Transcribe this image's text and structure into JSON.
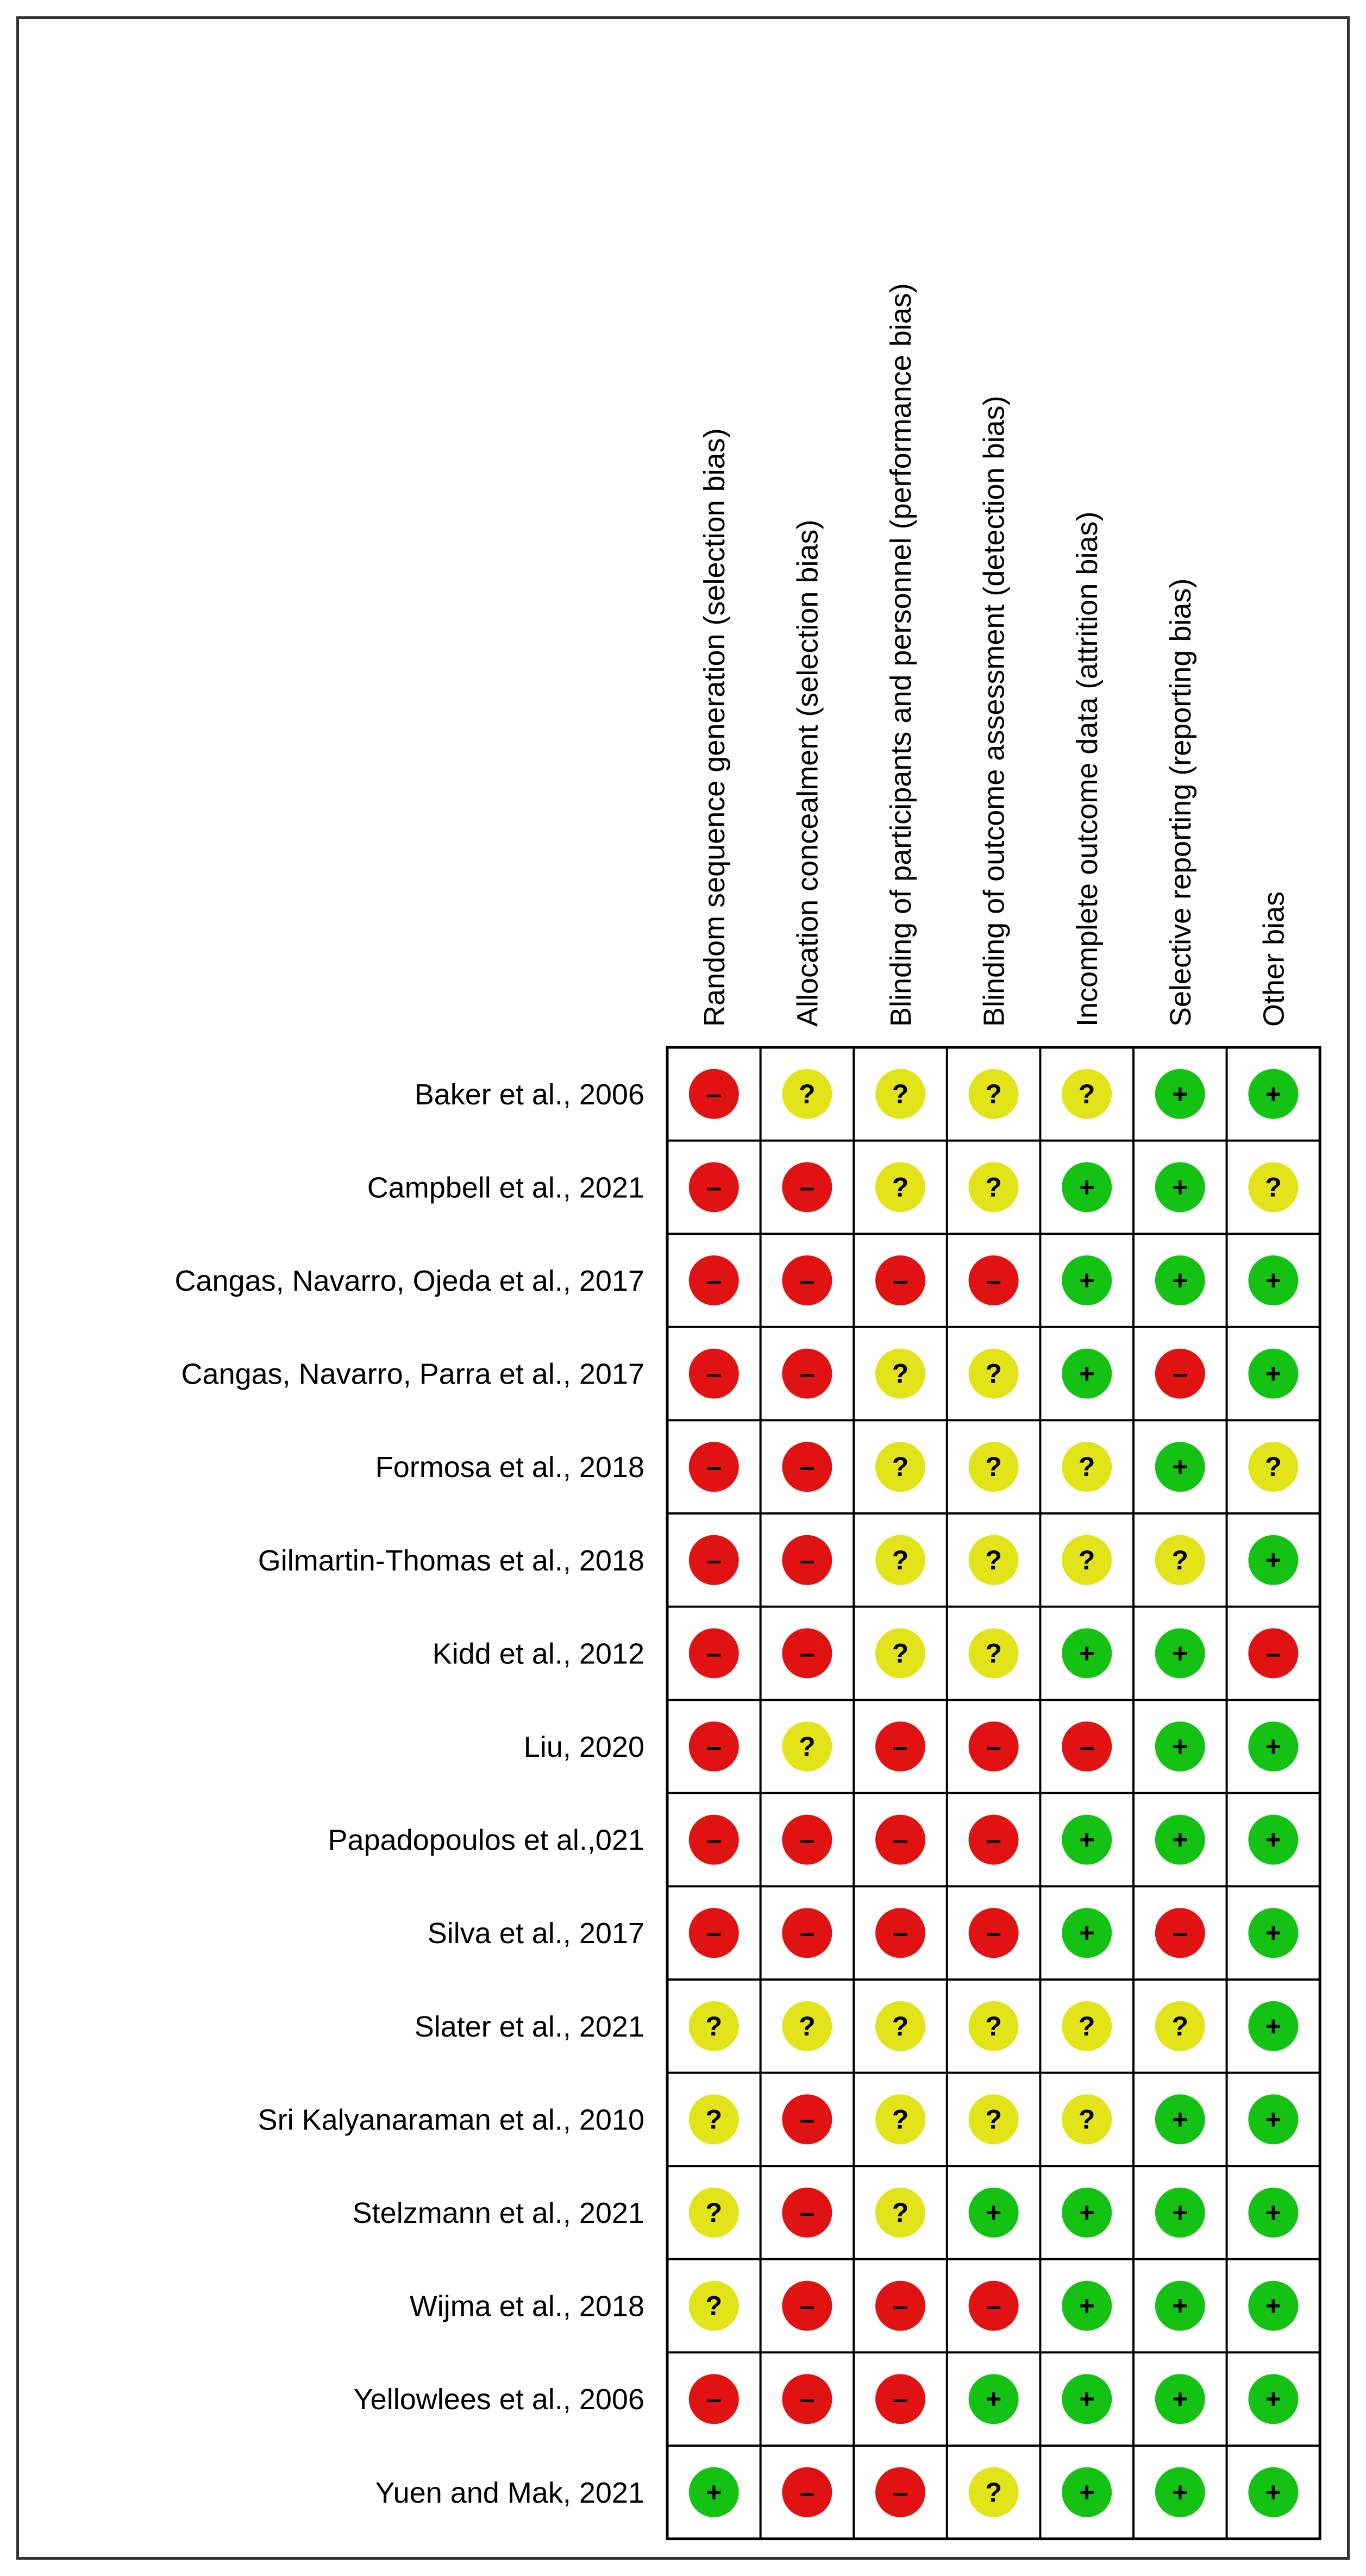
{
  "chart_data": {
    "type": "table",
    "domains": [
      "Random sequence generation (selection bias)",
      "Allocation concealment (selection bias)",
      "Blinding of participants and personnel (performance bias)",
      "Blinding of outcome assessment (detection bias)",
      "Incomplete outcome data (attrition bias)",
      "Selective reporting (reporting bias)",
      "Other bias"
    ],
    "studies": [
      {
        "name": "Baker et al., 2006",
        "ratings": [
          "high",
          "unclear",
          "unclear",
          "unclear",
          "unclear",
          "low",
          "low"
        ]
      },
      {
        "name": "Campbell et al., 2021",
        "ratings": [
          "high",
          "high",
          "unclear",
          "unclear",
          "low",
          "low",
          "unclear"
        ]
      },
      {
        "name": "Cangas, Navarro, Ojeda et al., 2017",
        "ratings": [
          "high",
          "high",
          "high",
          "high",
          "low",
          "low",
          "low"
        ]
      },
      {
        "name": "Cangas, Navarro, Parra et al., 2017",
        "ratings": [
          "high",
          "high",
          "unclear",
          "unclear",
          "low",
          "high",
          "low"
        ]
      },
      {
        "name": "Formosa et al., 2018",
        "ratings": [
          "high",
          "high",
          "unclear",
          "unclear",
          "unclear",
          "low",
          "unclear"
        ]
      },
      {
        "name": "Gilmartin-Thomas et al., 2018",
        "ratings": [
          "high",
          "high",
          "unclear",
          "unclear",
          "unclear",
          "unclear",
          "low"
        ]
      },
      {
        "name": "Kidd et al., 2012",
        "ratings": [
          "high",
          "high",
          "unclear",
          "unclear",
          "low",
          "low",
          "high"
        ]
      },
      {
        "name": "Liu, 2020",
        "ratings": [
          "high",
          "unclear",
          "high",
          "high",
          "high",
          "low",
          "low"
        ]
      },
      {
        "name": "Papadopoulos et al.,021",
        "ratings": [
          "high",
          "high",
          "high",
          "high",
          "low",
          "low",
          "low"
        ]
      },
      {
        "name": "Silva et al., 2017",
        "ratings": [
          "high",
          "high",
          "high",
          "high",
          "low",
          "high",
          "low"
        ]
      },
      {
        "name": "Slater et al., 2021",
        "ratings": [
          "unclear",
          "unclear",
          "unclear",
          "unclear",
          "unclear",
          "unclear",
          "low"
        ]
      },
      {
        "name": "Sri Kalyanaraman et al., 2010",
        "ratings": [
          "unclear",
          "high",
          "unclear",
          "unclear",
          "unclear",
          "low",
          "low"
        ]
      },
      {
        "name": "Stelzmann et al., 2021",
        "ratings": [
          "unclear",
          "high",
          "unclear",
          "low",
          "low",
          "low",
          "low"
        ]
      },
      {
        "name": "Wijma et al., 2018",
        "ratings": [
          "unclear",
          "high",
          "high",
          "high",
          "low",
          "low",
          "low"
        ]
      },
      {
        "name": "Yellowlees et al., 2006",
        "ratings": [
          "high",
          "high",
          "high",
          "low",
          "low",
          "low",
          "low"
        ]
      },
      {
        "name": "Yuen and Mak, 2021",
        "ratings": [
          "low",
          "high",
          "high",
          "unclear",
          "low",
          "low",
          "low"
        ]
      }
    ],
    "rating_styles": {
      "low": {
        "color": "#14c214",
        "symbol": "+"
      },
      "unclear": {
        "color": "#e3e31a",
        "symbol": "?"
      },
      "high": {
        "color": "#e01212",
        "symbol": "–"
      }
    }
  }
}
